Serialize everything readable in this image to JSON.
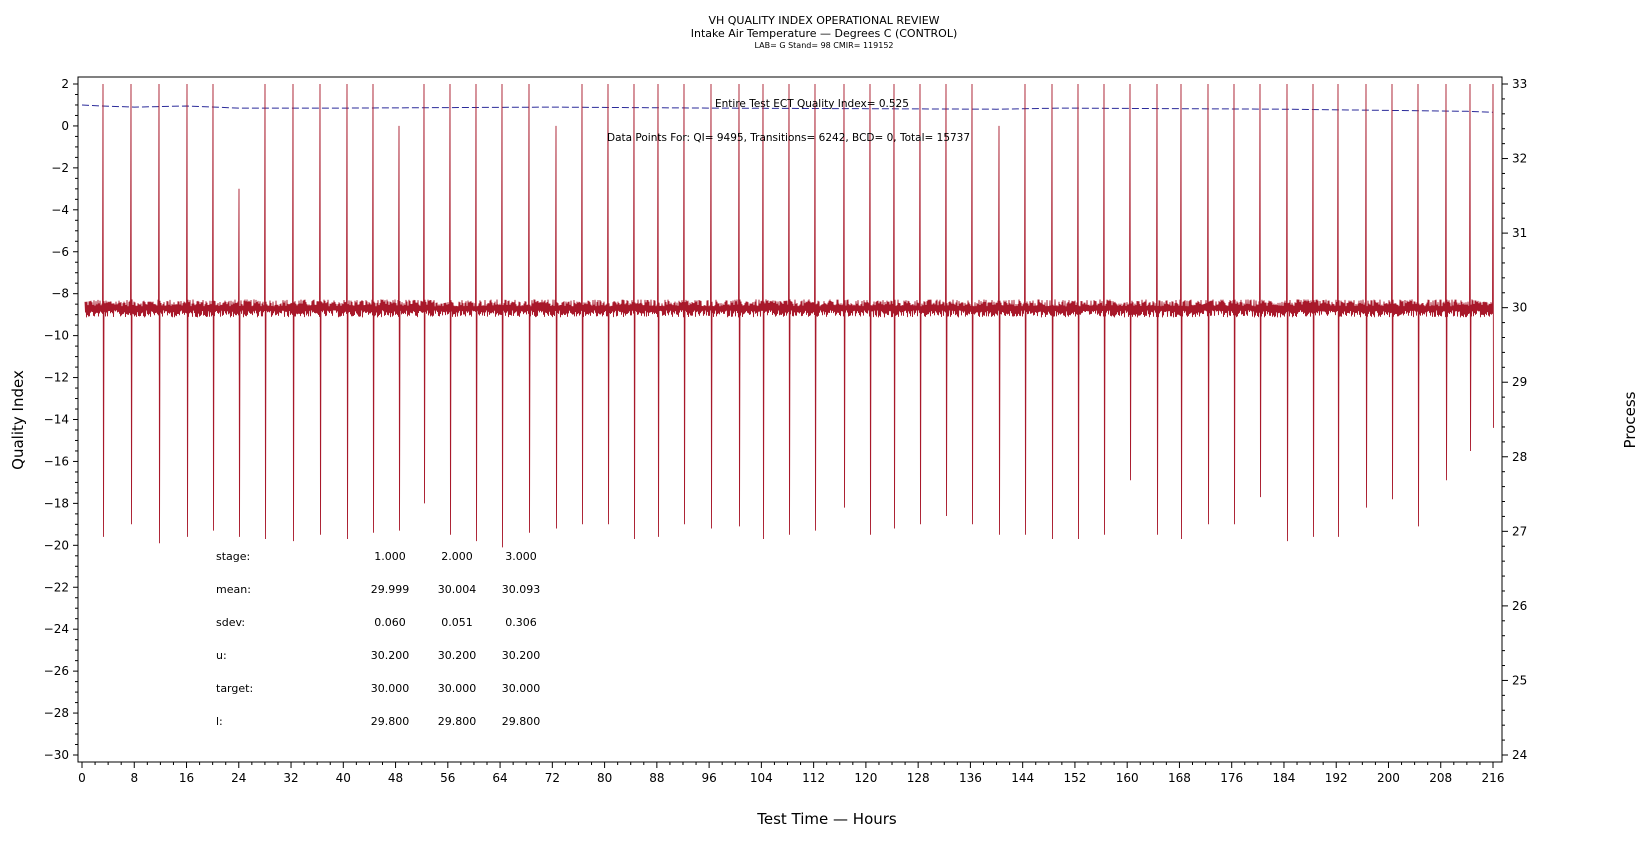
{
  "chart_data": {
    "type": "line",
    "title": "VH QUALITY INDEX OPERATIONAL REVIEW",
    "subtitle": "Intake Air Temperature — Degrees C (CONTROL)",
    "subtitle2": "LAB= G Stand= 98 CMIR= 119152",
    "xlabel": "Test Time — Hours",
    "ylabel": "Quality Index",
    "y2label": "Process",
    "xlim": [
      0,
      216
    ],
    "ylim": [
      -30,
      2
    ],
    "y2lim": [
      24,
      33
    ],
    "x_ticks": [
      0,
      8,
      16,
      24,
      32,
      40,
      48,
      56,
      64,
      72,
      80,
      88,
      96,
      104,
      112,
      120,
      128,
      136,
      144,
      152,
      160,
      168,
      176,
      184,
      192,
      200,
      208,
      216
    ],
    "y_ticks": [
      "2",
      "0",
      "−2",
      "−4",
      "−6",
      "−8",
      "−10",
      "−12",
      "−14",
      "−16",
      "−18",
      "−20",
      "−22",
      "−24",
      "−26",
      "−28",
      "−30"
    ],
    "y_tick_values": [
      2,
      0,
      -2,
      -4,
      -6,
      -8,
      -10,
      -12,
      -14,
      -16,
      -18,
      -20,
      -22,
      -24,
      -26,
      -28,
      -30
    ],
    "y2_ticks": [
      33,
      32,
      31,
      30,
      29,
      28,
      27,
      26,
      25,
      24
    ],
    "quality_index_note": "Entire Test ECT Quality Index=   0.525",
    "data_points_note": "Data Points For: QI=  9495, Transitions=  6242, BCD=    0, Total=  15737",
    "series": [
      {
        "axis": "left",
        "color": "#2b2b9a",
        "style": "dashed",
        "points": [
          [
            0,
            1.0
          ],
          [
            3,
            0.95
          ],
          [
            8,
            0.9
          ],
          [
            16,
            0.95
          ],
          [
            24,
            0.85
          ],
          [
            40,
            0.85
          ],
          [
            72,
            0.9
          ],
          [
            96,
            0.85
          ],
          [
            140,
            0.8
          ],
          [
            150,
            0.85
          ],
          [
            184,
            0.8
          ],
          [
            212,
            0.7
          ],
          [
            216,
            0.65
          ]
        ]
      },
      {
        "axis": "left",
        "color": "#a8182a",
        "style": "solid",
        "baseline": -8.7,
        "spikes": [
          [
            3.2,
            2,
            -19.6
          ],
          [
            7.5,
            2,
            -19.0
          ],
          [
            11.8,
            2,
            -19.9
          ],
          [
            16.0,
            2,
            -19.6
          ],
          [
            20.0,
            2,
            -19.3
          ],
          [
            24.0,
            -3,
            -19.6
          ],
          [
            28.0,
            2,
            -19.7
          ],
          [
            32.3,
            2,
            -19.8
          ],
          [
            36.5,
            2,
            -19.5
          ],
          [
            40.5,
            2,
            -19.7
          ],
          [
            44.6,
            2,
            -19.4
          ],
          [
            48.5,
            0,
            -19.3
          ],
          [
            52.3,
            2,
            -18.0
          ],
          [
            56.3,
            2,
            -19.5
          ],
          [
            60.3,
            2,
            -19.8
          ],
          [
            64.3,
            2,
            -20.1
          ],
          [
            68.5,
            2,
            -19.4
          ],
          [
            72.5,
            0,
            -19.2
          ],
          [
            76.6,
            2,
            -19.0
          ],
          [
            80.5,
            2,
            -19.0
          ],
          [
            84.5,
            2,
            -19.7
          ],
          [
            88.2,
            2,
            -19.6
          ],
          [
            92.2,
            2,
            -19.0
          ],
          [
            96.3,
            2,
            -19.2
          ],
          [
            100.6,
            2,
            -19.1
          ],
          [
            104.2,
            2,
            -19.7
          ],
          [
            108.2,
            2,
            -19.5
          ],
          [
            112.2,
            2,
            -19.3
          ],
          [
            116.6,
            2,
            -18.2
          ],
          [
            120.6,
            2,
            -19.5
          ],
          [
            124.3,
            2,
            -19.2
          ],
          [
            128.3,
            2,
            -19.0
          ],
          [
            132.3,
            2,
            -18.6
          ],
          [
            136.3,
            2,
            -19.0
          ],
          [
            140.4,
            0,
            -19.5
          ],
          [
            144.4,
            2,
            -19.5
          ],
          [
            148.5,
            2,
            -19.7
          ],
          [
            152.4,
            2,
            -19.7
          ],
          [
            156.4,
            2,
            -19.5
          ],
          [
            160.4,
            2,
            -16.9
          ],
          [
            164.5,
            2,
            -19.5
          ],
          [
            168.3,
            2,
            -19.7
          ],
          [
            172.3,
            2,
            -19.0
          ],
          [
            176.4,
            2,
            -19.0
          ],
          [
            180.4,
            2,
            -17.7
          ],
          [
            184.5,
            2,
            -19.8
          ],
          [
            188.5,
            2,
            -19.6
          ],
          [
            192.3,
            2,
            -19.6
          ],
          [
            196.5,
            2,
            -18.2
          ],
          [
            200.5,
            2,
            -17.8
          ],
          [
            204.5,
            2,
            -19.1
          ],
          [
            208.8,
            2,
            -16.9
          ],
          [
            212.5,
            2,
            -15.5
          ],
          [
            216.0,
            2,
            -14.4
          ]
        ]
      }
    ],
    "stats_table": {
      "rows": [
        {
          "label": "stage:",
          "values": [
            "1.000",
            "2.000",
            "3.000"
          ]
        },
        {
          "label": "mean:",
          "values": [
            "29.999",
            "30.004",
            "30.093"
          ]
        },
        {
          "label": "sdev:",
          "values": [
            "0.060",
            "0.051",
            "0.306"
          ]
        },
        {
          "label": "u:",
          "values": [
            "30.200",
            "30.200",
            "30.200"
          ]
        },
        {
          "label": "target:",
          "values": [
            "30.000",
            "30.000",
            "30.000"
          ]
        },
        {
          "label": "l:",
          "values": [
            "29.800",
            "29.800",
            "29.800"
          ]
        }
      ]
    }
  }
}
